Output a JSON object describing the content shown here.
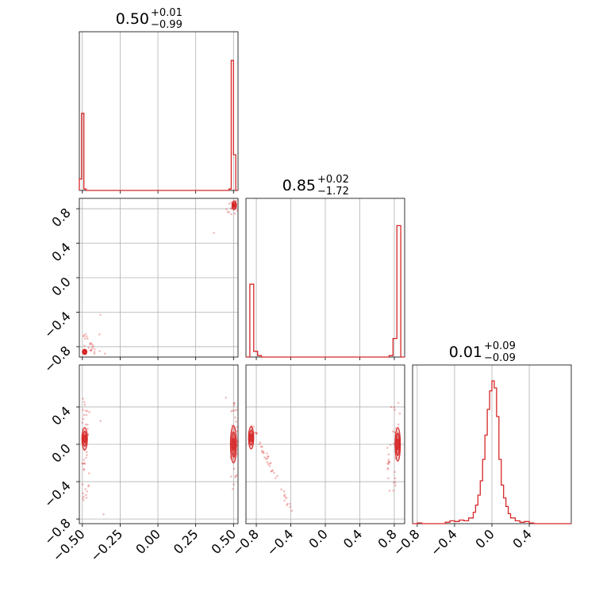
{
  "chart_data": {
    "type": "corner",
    "color": "#d62728",
    "grid": true,
    "params": [
      {
        "title": "0.50",
        "plus": "+0.01",
        "minus": "−0.99",
        "range": [
          -0.52,
          0.53
        ]
      },
      {
        "title": "0.85",
        "plus": "+0.02",
        "minus": "−1.72",
        "range": [
          -0.92,
          0.92
        ]
      },
      {
        "title": "0.01",
        "plus": "+0.09",
        "minus": "−0.09",
        "range": [
          -0.85,
          0.85
        ]
      }
    ],
    "ticks": [
      {
        "values": [
          -0.5,
          -0.25,
          0.0,
          0.25,
          0.5
        ],
        "labels": [
          "−0.50",
          "−0.25",
          "0.00",
          "0.25",
          "0.50"
        ]
      },
      {
        "values": [
          -0.8,
          -0.4,
          0.0,
          0.4,
          0.8
        ],
        "labels": [
          "−0.8",
          "−0.4",
          "0.0",
          "0.4",
          "0.8"
        ]
      },
      {
        "values": [
          -0.8,
          -0.4,
          0.0,
          0.4
        ],
        "labels": [
          "−0.8",
          "−0.4",
          "0.0",
          "0.4"
        ]
      }
    ],
    "y_ticks_row1": {
      "values": [
        -0.8,
        -0.4,
        0.0,
        0.4,
        0.8
      ],
      "labels": [
        "−0.8",
        "−0.4",
        "0.0",
        "0.4",
        "0.8"
      ]
    },
    "y_ticks_row2": {
      "values": [
        -0.8,
        -0.4,
        0.0,
        0.4
      ],
      "labels": [
        "−0.8",
        "−0.4",
        "0.0",
        "0.4"
      ]
    },
    "hist_0": {
      "edges": [
        -0.52,
        -0.505,
        -0.49,
        -0.475,
        0.47,
        0.485,
        0.5,
        0.515,
        0.53
      ],
      "counts": [
        0.08,
        0.54,
        0.01,
        0.0,
        0.01,
        0.91,
        0.25,
        0.0
      ]
    },
    "hist_1": {
      "edges": [
        -0.92,
        -0.875,
        -0.83,
        -0.785,
        -0.74,
        0.74,
        0.785,
        0.83,
        0.875,
        0.92
      ],
      "counts": [
        0.0,
        0.51,
        0.04,
        0.01,
        0.0,
        0.01,
        0.13,
        0.92,
        0.0
      ]
    },
    "hist_2": {
      "edges": [
        -0.85,
        -0.8,
        -0.75,
        -0.5,
        -0.45,
        -0.4,
        -0.35,
        -0.3,
        -0.25,
        -0.2,
        -0.175,
        -0.15,
        -0.125,
        -0.1,
        -0.075,
        -0.05,
        -0.025,
        0.0,
        0.025,
        0.05,
        0.075,
        0.1,
        0.125,
        0.15,
        0.175,
        0.2,
        0.25,
        0.3,
        0.35,
        0.4,
        0.45,
        0.85
      ],
      "counts": [
        0.0,
        0.005,
        0.0,
        0.01,
        0.02,
        0.015,
        0.025,
        0.02,
        0.04,
        0.08,
        0.13,
        0.2,
        0.3,
        0.45,
        0.62,
        0.8,
        0.93,
        1.0,
        0.95,
        0.75,
        0.45,
        0.27,
        0.18,
        0.12,
        0.07,
        0.04,
        0.02,
        0.01,
        0.015,
        0.005,
        0.0
      ]
    }
  }
}
